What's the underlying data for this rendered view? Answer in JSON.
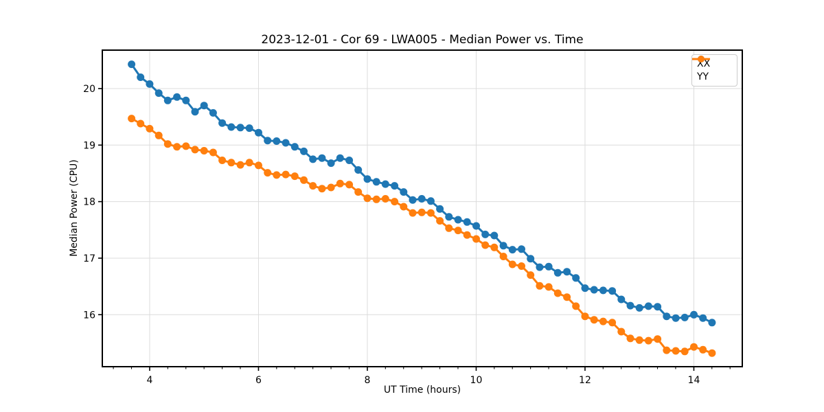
{
  "figure": {
    "background": "#ffffff",
    "title": "2023-12-01 - Cor 69 - LWA005 - Median Power vs. Time",
    "xlabel": "UT Time (hours)",
    "ylabel": "Median Power (CPU)"
  },
  "legend": {
    "position": "upper right",
    "entries": [
      {
        "label": "XX",
        "color": "#1f77b4"
      },
      {
        "label": "YY",
        "color": "#ff7f0e"
      }
    ]
  },
  "chart_data": {
    "type": "line",
    "title": "2023-12-01 - Cor 69 - LWA005 - Median Power vs. Time",
    "xlabel": "UT Time (hours)",
    "ylabel": "Median Power (CPU)",
    "xlim": [
      3.13,
      14.89
    ],
    "ylim": [
      15.08,
      20.68
    ],
    "xticks": [
      4,
      6,
      8,
      10,
      12,
      14
    ],
    "yticks": [
      16,
      17,
      18,
      19,
      20
    ],
    "minor_xtick_step": 0.3333,
    "grid": true,
    "grid_color": "#dcdcdc",
    "marker": "o",
    "x": [
      3.667,
      3.833,
      4.0,
      4.167,
      4.333,
      4.5,
      4.667,
      4.833,
      5.0,
      5.167,
      5.333,
      5.5,
      5.667,
      5.833,
      6.0,
      6.167,
      6.333,
      6.5,
      6.667,
      6.833,
      7.0,
      7.167,
      7.333,
      7.5,
      7.667,
      7.833,
      8.0,
      8.167,
      8.333,
      8.5,
      8.667,
      8.833,
      9.0,
      9.167,
      9.333,
      9.5,
      9.667,
      9.833,
      10.0,
      10.167,
      10.333,
      10.5,
      10.667,
      10.833,
      11.0,
      11.167,
      11.333,
      11.5,
      11.667,
      11.833,
      12.0,
      12.167,
      12.333,
      12.5,
      12.667,
      12.833,
      13.0,
      13.167,
      13.333,
      13.5,
      13.667,
      13.833,
      14.0,
      14.167,
      14.333
    ],
    "series": [
      {
        "name": "XX",
        "color": "#1f77b4",
        "values": [
          20.43,
          20.2,
          20.08,
          19.92,
          19.79,
          19.85,
          19.79,
          19.59,
          19.7,
          19.57,
          19.39,
          19.32,
          19.31,
          19.3,
          19.22,
          19.08,
          19.07,
          19.04,
          18.97,
          18.89,
          18.75,
          18.77,
          18.68,
          18.77,
          18.73,
          18.56,
          18.4,
          18.35,
          18.31,
          18.28,
          18.17,
          18.03,
          18.05,
          18.01,
          17.87,
          17.73,
          17.68,
          17.64,
          17.57,
          17.42,
          17.4,
          17.22,
          17.15,
          17.16,
          16.99,
          16.84,
          16.85,
          16.74,
          16.76,
          16.65,
          16.47,
          16.44,
          16.43,
          16.42,
          16.27,
          16.16,
          16.12,
          16.15,
          16.14,
          15.97,
          15.94,
          15.95,
          16.0,
          15.94,
          15.86
        ]
      },
      {
        "name": "YY",
        "color": "#ff7f0e",
        "values": [
          19.47,
          19.38,
          19.29,
          19.17,
          19.02,
          18.97,
          18.98,
          18.92,
          18.9,
          18.87,
          18.73,
          18.69,
          18.65,
          18.69,
          18.64,
          18.51,
          18.47,
          18.48,
          18.45,
          18.38,
          18.28,
          18.23,
          18.25,
          18.32,
          18.3,
          18.17,
          18.06,
          18.04,
          18.05,
          18.0,
          17.91,
          17.8,
          17.81,
          17.8,
          17.66,
          17.53,
          17.49,
          17.41,
          17.34,
          17.23,
          17.19,
          17.03,
          16.89,
          16.86,
          16.7,
          16.51,
          16.49,
          16.38,
          16.31,
          16.15,
          15.97,
          15.91,
          15.88,
          15.86,
          15.7,
          15.58,
          15.55,
          15.54,
          15.57,
          15.37,
          15.36,
          15.35,
          15.43,
          15.38,
          15.32
        ]
      }
    ]
  }
}
